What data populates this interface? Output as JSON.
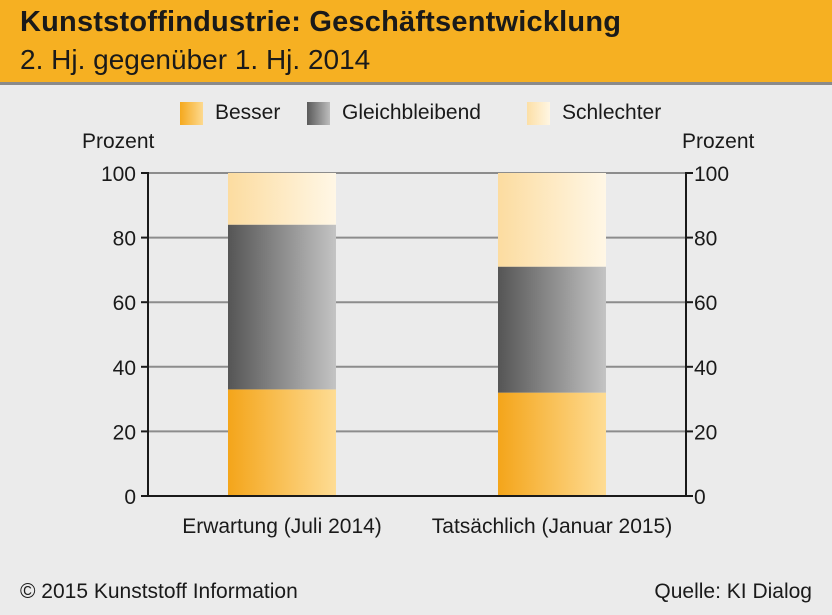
{
  "header": {
    "title": "Kunststoffindustrie: Geschäftsentwicklung",
    "subtitle": "2. Hj. gegenüber 1. Hj. 2014"
  },
  "legend": [
    {
      "label": "Besser",
      "color": "#f6b022"
    },
    {
      "label": "Gleichbleibend",
      "color": "#7d7d7d"
    },
    {
      "label": "Schlechter",
      "color": "#fde6b8"
    }
  ],
  "axis": {
    "left_unit": "Prozent",
    "right_unit": "Prozent"
  },
  "footer": {
    "copyright": "© 2015 Kunststoff Information",
    "source": "Quelle: KI Dialog"
  },
  "chart_data": {
    "type": "bar",
    "stacked": true,
    "categories": [
      "Erwartung (Juli 2014)",
      "Tatsächlich (Januar 2015)"
    ],
    "series": [
      {
        "name": "Besser",
        "values": [
          33,
          32
        ]
      },
      {
        "name": "Gleichbleibend",
        "values": [
          51,
          39
        ]
      },
      {
        "name": "Schlechter",
        "values": [
          16,
          29
        ]
      }
    ],
    "ylabel": "Prozent",
    "ylim": [
      0,
      100
    ],
    "yticks": [
      0,
      20,
      40,
      60,
      80,
      100
    ],
    "grid": true,
    "legend_position": "top"
  }
}
